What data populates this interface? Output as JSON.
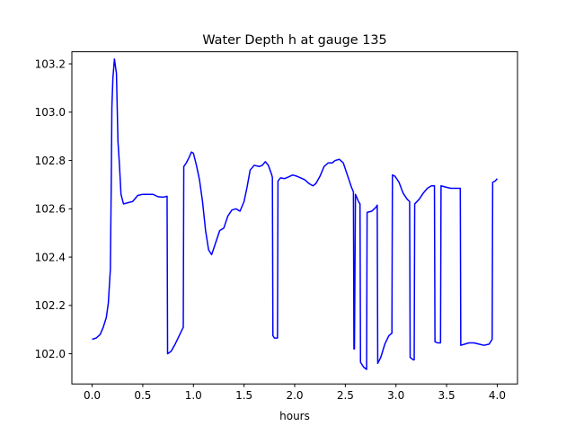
{
  "chart_data": {
    "type": "line",
    "title": "Water Depth h at gauge 135",
    "xlabel": "hours",
    "ylabel": "",
    "xlim": [
      -0.2,
      4.2
    ],
    "ylim": [
      101.875,
      103.25
    ],
    "xticks": [
      0.0,
      0.5,
      1.0,
      1.5,
      2.0,
      2.5,
      3.0,
      3.5,
      4.0
    ],
    "xtick_labels": [
      "0.0",
      "0.5",
      "1.0",
      "1.5",
      "2.0",
      "2.5",
      "3.0",
      "3.5",
      "4.0"
    ],
    "yticks": [
      102.0,
      102.2,
      102.4,
      102.6,
      102.8,
      103.0,
      103.2
    ],
    "ytick_labels": [
      "102.0",
      "102.2",
      "102.4",
      "102.6",
      "102.8",
      "103.0",
      "103.2"
    ],
    "grid": false,
    "legend": "none",
    "series": [
      {
        "color": "#0000ff",
        "points": [
          [
            0.0,
            102.06
          ],
          [
            0.04,
            102.065
          ],
          [
            0.08,
            102.08
          ],
          [
            0.11,
            102.11
          ],
          [
            0.14,
            102.15
          ],
          [
            0.16,
            102.21
          ],
          [
            0.18,
            102.35
          ],
          [
            0.19,
            102.75
          ],
          [
            0.195,
            103.02
          ],
          [
            0.205,
            103.14
          ],
          [
            0.22,
            103.22
          ],
          [
            0.24,
            103.16
          ],
          [
            0.255,
            102.88
          ],
          [
            0.27,
            102.78
          ],
          [
            0.285,
            102.66
          ],
          [
            0.31,
            102.62
          ],
          [
            0.35,
            102.625
          ],
          [
            0.4,
            102.63
          ],
          [
            0.45,
            102.655
          ],
          [
            0.5,
            102.66
          ],
          [
            0.55,
            102.66
          ],
          [
            0.6,
            102.66
          ],
          [
            0.65,
            102.65
          ],
          [
            0.7,
            102.648
          ],
          [
            0.74,
            102.652
          ],
          [
            0.745,
            102.0
          ],
          [
            0.78,
            102.01
          ],
          [
            0.82,
            102.04
          ],
          [
            0.86,
            102.075
          ],
          [
            0.9,
            102.11
          ],
          [
            0.905,
            102.775
          ],
          [
            0.93,
            102.79
          ],
          [
            0.96,
            102.815
          ],
          [
            0.98,
            102.835
          ],
          [
            1.0,
            102.83
          ],
          [
            1.03,
            102.78
          ],
          [
            1.06,
            102.72
          ],
          [
            1.09,
            102.63
          ],
          [
            1.12,
            102.51
          ],
          [
            1.15,
            102.43
          ],
          [
            1.18,
            102.41
          ],
          [
            1.22,
            102.46
          ],
          [
            1.26,
            102.51
          ],
          [
            1.3,
            102.52
          ],
          [
            1.34,
            102.57
          ],
          [
            1.38,
            102.595
          ],
          [
            1.42,
            102.6
          ],
          [
            1.46,
            102.59
          ],
          [
            1.5,
            102.63
          ],
          [
            1.53,
            102.69
          ],
          [
            1.56,
            102.76
          ],
          [
            1.6,
            102.78
          ],
          [
            1.65,
            102.775
          ],
          [
            1.68,
            102.78
          ],
          [
            1.71,
            102.795
          ],
          [
            1.74,
            102.78
          ],
          [
            1.77,
            102.745
          ],
          [
            1.78,
            102.73
          ],
          [
            1.785,
            102.075
          ],
          [
            1.8,
            102.065
          ],
          [
            1.83,
            102.065
          ],
          [
            1.835,
            102.715
          ],
          [
            1.86,
            102.728
          ],
          [
            1.9,
            102.725
          ],
          [
            1.94,
            102.732
          ],
          [
            1.98,
            102.74
          ],
          [
            2.02,
            102.735
          ],
          [
            2.06,
            102.728
          ],
          [
            2.1,
            102.72
          ],
          [
            2.14,
            102.705
          ],
          [
            2.18,
            102.695
          ],
          [
            2.21,
            102.705
          ],
          [
            2.25,
            102.735
          ],
          [
            2.29,
            102.775
          ],
          [
            2.33,
            102.79
          ],
          [
            2.37,
            102.79
          ],
          [
            2.4,
            102.8
          ],
          [
            2.44,
            102.805
          ],
          [
            2.48,
            102.79
          ],
          [
            2.52,
            102.74
          ],
          [
            2.56,
            102.69
          ],
          [
            2.58,
            102.67
          ],
          [
            2.585,
            102.02
          ],
          [
            2.59,
            102.02
          ],
          [
            2.6,
            102.66
          ],
          [
            2.63,
            102.63
          ],
          [
            2.645,
            102.62
          ],
          [
            2.65,
            101.965
          ],
          [
            2.68,
            101.945
          ],
          [
            2.71,
            101.935
          ],
          [
            2.715,
            102.585
          ],
          [
            2.76,
            102.59
          ],
          [
            2.8,
            102.605
          ],
          [
            2.815,
            102.615
          ],
          [
            2.82,
            101.96
          ],
          [
            2.85,
            101.985
          ],
          [
            2.89,
            102.04
          ],
          [
            2.93,
            102.075
          ],
          [
            2.96,
            102.085
          ],
          [
            2.965,
            102.74
          ],
          [
            2.99,
            102.735
          ],
          [
            3.03,
            102.71
          ],
          [
            3.07,
            102.665
          ],
          [
            3.11,
            102.64
          ],
          [
            3.135,
            102.63
          ],
          [
            3.14,
            101.985
          ],
          [
            3.17,
            101.975
          ],
          [
            3.18,
            101.975
          ],
          [
            3.185,
            102.62
          ],
          [
            3.23,
            102.64
          ],
          [
            3.27,
            102.665
          ],
          [
            3.31,
            102.685
          ],
          [
            3.35,
            102.695
          ],
          [
            3.38,
            102.695
          ],
          [
            3.385,
            102.05
          ],
          [
            3.41,
            102.045
          ],
          [
            3.44,
            102.045
          ],
          [
            3.445,
            102.695
          ],
          [
            3.49,
            102.69
          ],
          [
            3.54,
            102.685
          ],
          [
            3.59,
            102.685
          ],
          [
            3.635,
            102.685
          ],
          [
            3.64,
            102.035
          ],
          [
            3.68,
            102.04
          ],
          [
            3.72,
            102.045
          ],
          [
            3.77,
            102.045
          ],
          [
            3.82,
            102.04
          ],
          [
            3.87,
            102.035
          ],
          [
            3.92,
            102.04
          ],
          [
            3.95,
            102.06
          ],
          [
            3.955,
            102.71
          ],
          [
            3.98,
            102.715
          ],
          [
            4.0,
            102.725
          ]
        ]
      }
    ]
  }
}
